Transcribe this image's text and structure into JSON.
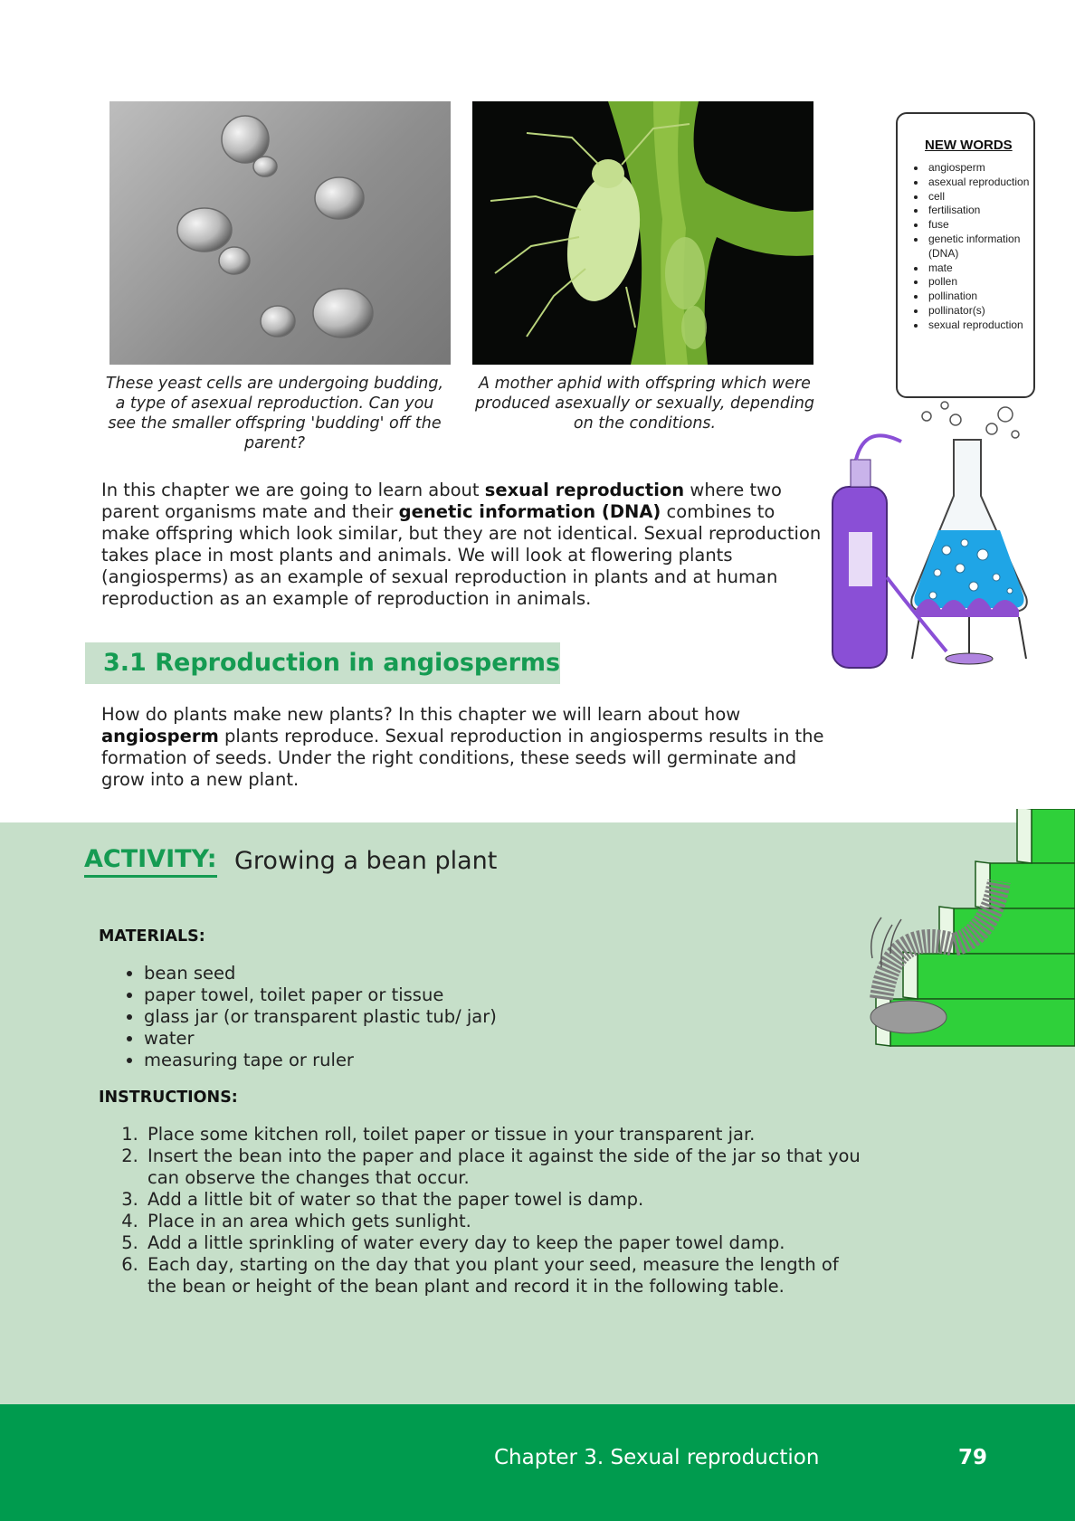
{
  "photos": {
    "yeast_caption": "These yeast cells are undergoing budding, a type of asexual reproduction. Can you see the smaller offspring 'budding' off the parent?",
    "aphid_caption": "A mother aphid with offspring which were produced asexually or sexually, depending on the conditions."
  },
  "new_words": {
    "title": "NEW WORDS",
    "items": [
      "angiosperm",
      "asexual reproduction",
      "cell",
      "fertilisation",
      "fuse",
      "genetic information (DNA)",
      "mate",
      "pollen",
      "pollination",
      "pollinator(s)",
      "sexual reproduction"
    ]
  },
  "intro": {
    "t1": "In this chapter we are going to learn about ",
    "b1": "sexual reproduction",
    "t2": " where two parent organisms mate and their ",
    "b2": "genetic information (DNA)",
    "t3": " combines to make offspring which look similar, but they are not identical. Sexual reproduction takes place in most plants and animals. We will look at flowering plants (angiosperms) as an example of sexual reproduction in plants and at human reproduction as an example of reproduction in animals."
  },
  "section": {
    "heading": "3.1  Reproduction in angiosperms"
  },
  "section_text": {
    "t1": "How do plants make new plants? In this chapter we will learn about how ",
    "b1": "angiosperm",
    "t2": " plants reproduce. Sexual reproduction in angiosperms results in the formation of seeds. Under the right conditions, these seeds will germinate and grow into a new plant."
  },
  "activity": {
    "label": "ACTIVITY:",
    "title": "Growing a bean plant",
    "materials_heading": "MATERIALS:",
    "materials": [
      "bean seed",
      "paper towel, toilet paper or tissue",
      "glass jar (or transparent plastic tub/ jar)",
      "water",
      "measuring tape or ruler"
    ],
    "instructions_heading": "INSTRUCTIONS:",
    "instructions": [
      "Place some kitchen roll, toilet paper or tissue in your transparent jar.",
      "Insert the bean into the paper and place it against the side of the jar so that you can observe the changes that occur.",
      "Add a little bit of water so that the paper towel is damp.",
      "Place in an area which gets sunlight.",
      "Add a little sprinkling of water every day to keep the paper towel damp.",
      "Each day, starting on the day that you plant your seed, measure the length of the bean or height of the bean plant and record it in the following table."
    ]
  },
  "footer": {
    "chapter": "Chapter 3.   Sexual reproduction",
    "page": "79"
  }
}
